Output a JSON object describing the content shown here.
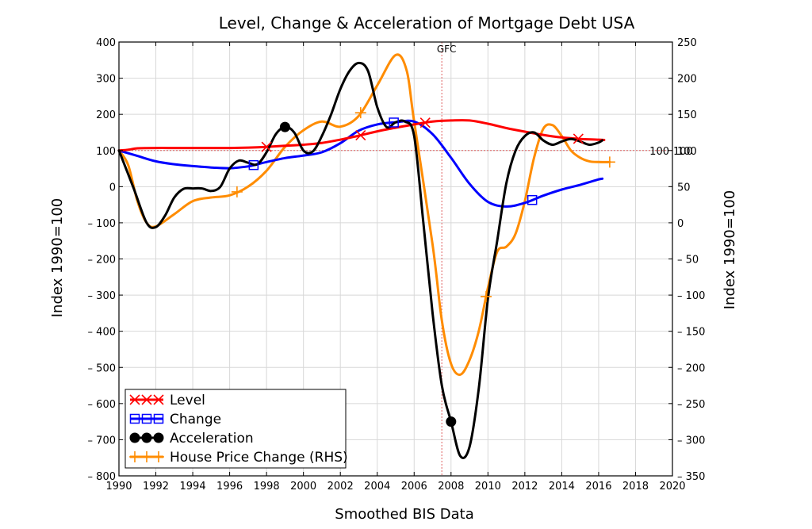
{
  "chart_data": {
    "type": "line",
    "title": "Level, Change & Acceleration of Mortgage Debt USA",
    "xlabel": "Smoothed BIS Data",
    "ylabel": "Index 1990=100",
    "ylabel_right": "Index 1990=100",
    "xlim": [
      1990,
      2020
    ],
    "ylim": [
      -800,
      400
    ],
    "ylim_right": [
      -350,
      250
    ],
    "x_ticks": [
      1990,
      1992,
      1994,
      1996,
      1998,
      2000,
      2002,
      2004,
      2006,
      2008,
      2010,
      2012,
      2014,
      2016,
      2018,
      2020
    ],
    "y_ticks": [
      400,
      300,
      200,
      100,
      0,
      -100,
      -200,
      -300,
      -400,
      -500,
      -600,
      -700,
      -800
    ],
    "y_ticks_right": [
      250,
      200,
      150,
      100,
      50,
      0,
      -50,
      -100,
      -150,
      -200,
      -250,
      -300,
      -350
    ],
    "y_tick_labels": [
      "400",
      "300",
      "200",
      "100",
      "0",
      "– 100",
      "– 200",
      "– 300",
      "– 400",
      "– 500",
      "– 600",
      "– 700",
      "– 800"
    ],
    "y_tick_labels_right": [
      "250",
      "200",
      "150",
      "100",
      "50",
      "0",
      "– 50",
      "– 100",
      "– 150",
      "– 200",
      "– 250",
      "– 300",
      "– 350"
    ],
    "grid": true,
    "legend_position": "bottom-left",
    "colors": {
      "level": "#ff0000",
      "change": "#0000ff",
      "acceleration": "#000000",
      "house_price": "#ff8c00",
      "grid": "#d8d8d8",
      "reference": "#e06060"
    },
    "reference_lines": {
      "vertical": {
        "x": 2007.5,
        "label": "GFC"
      },
      "horizontal": {
        "y": 100,
        "label_left": "100",
        "label_right": "100"
      }
    },
    "series": [
      {
        "name": "Level",
        "axis": "left",
        "marker": "x",
        "color": "#ff0000",
        "marker_x": [
          1998.0,
          2003.1,
          2006.6,
          2014.9
        ],
        "points": [
          [
            1990,
            100
          ],
          [
            1990.5,
            102
          ],
          [
            1991,
            106
          ],
          [
            1992,
            107
          ],
          [
            1993,
            107
          ],
          [
            1994,
            107
          ],
          [
            1995,
            107
          ],
          [
            1996,
            107
          ],
          [
            1997,
            108
          ],
          [
            1998,
            110
          ],
          [
            1999,
            113
          ],
          [
            2000,
            116
          ],
          [
            2001,
            121
          ],
          [
            2002,
            130
          ],
          [
            2003,
            141
          ],
          [
            2004,
            153
          ],
          [
            2005,
            163
          ],
          [
            2006,
            172
          ],
          [
            2007,
            180
          ],
          [
            2008,
            183
          ],
          [
            2009,
            183
          ],
          [
            2010,
            174
          ],
          [
            2011,
            162
          ],
          [
            2012,
            152
          ],
          [
            2013,
            143
          ],
          [
            2014,
            136
          ],
          [
            2015,
            132
          ],
          [
            2016,
            130
          ],
          [
            2016.3,
            129
          ]
        ]
      },
      {
        "name": "Change",
        "axis": "left",
        "marker": "square",
        "color": "#0000ff",
        "marker_x": [
          1997.3,
          2004.9,
          2012.4
        ],
        "points": [
          [
            1990,
            100
          ],
          [
            1991,
            85
          ],
          [
            1992,
            70
          ],
          [
            1993,
            62
          ],
          [
            1994,
            57
          ],
          [
            1995,
            53
          ],
          [
            1996,
            51
          ],
          [
            1997,
            56
          ],
          [
            1997.5,
            62
          ],
          [
            1998,
            68
          ],
          [
            1999,
            79
          ],
          [
            2000,
            86
          ],
          [
            2001,
            95
          ],
          [
            2002,
            120
          ],
          [
            2003,
            155
          ],
          [
            2004,
            172
          ],
          [
            2005,
            178
          ],
          [
            2006,
            180
          ],
          [
            2007,
            145
          ],
          [
            2008,
            80
          ],
          [
            2009,
            8
          ],
          [
            2010,
            -42
          ],
          [
            2011,
            -55
          ],
          [
            2012,
            -45
          ],
          [
            2013,
            -25
          ],
          [
            2014,
            -8
          ],
          [
            2015,
            5
          ],
          [
            2016,
            20
          ],
          [
            2016.2,
            22
          ]
        ]
      },
      {
        "name": "Acceleration",
        "axis": "left",
        "marker": "circle",
        "color": "#000000",
        "marker_x": [
          1999.0,
          2008.0
        ],
        "points": [
          [
            1990,
            100
          ],
          [
            1990.8,
            -5
          ],
          [
            1991.5,
            -100
          ],
          [
            1992,
            -112
          ],
          [
            1992.5,
            -80
          ],
          [
            1993,
            -30
          ],
          [
            1993.5,
            -6
          ],
          [
            1994,
            -5
          ],
          [
            1994.5,
            -5
          ],
          [
            1995,
            -12
          ],
          [
            1995.5,
            0
          ],
          [
            1996,
            50
          ],
          [
            1996.5,
            72
          ],
          [
            1997,
            66
          ],
          [
            1997.5,
            62
          ],
          [
            1998,
            95
          ],
          [
            1998.5,
            145
          ],
          [
            1999,
            165
          ],
          [
            1999.5,
            150
          ],
          [
            2000,
            100
          ],
          [
            2000.5,
            97
          ],
          [
            2001,
            140
          ],
          [
            2001.5,
            200
          ],
          [
            2002,
            270
          ],
          [
            2002.5,
            320
          ],
          [
            2003,
            342
          ],
          [
            2003.5,
            320
          ],
          [
            2004,
            220
          ],
          [
            2004.5,
            165
          ],
          [
            2005,
            178
          ],
          [
            2005.5,
            180
          ],
          [
            2006,
            140
          ],
          [
            2006.5,
            -100
          ],
          [
            2007,
            -350
          ],
          [
            2007.5,
            -550
          ],
          [
            2008,
            -650
          ],
          [
            2008.5,
            -745
          ],
          [
            2009,
            -720
          ],
          [
            2009.5,
            -560
          ],
          [
            2010,
            -310
          ],
          [
            2010.5,
            -150
          ],
          [
            2011,
            10
          ],
          [
            2011.5,
            100
          ],
          [
            2012,
            140
          ],
          [
            2012.5,
            150
          ],
          [
            2013,
            128
          ],
          [
            2013.5,
            116
          ],
          [
            2014,
            125
          ],
          [
            2014.5,
            132
          ],
          [
            2015,
            125
          ],
          [
            2015.5,
            116
          ],
          [
            2016,
            122
          ],
          [
            2016.2,
            128
          ]
        ]
      },
      {
        "name": "House Price Change (RHS)",
        "axis": "right",
        "marker": "plus",
        "color": "#ff8c00",
        "marker_x": [
          1996.4,
          2003.1,
          2009.9,
          2016.6
        ],
        "points": [
          [
            1990,
            100
          ],
          [
            1990.5,
            80
          ],
          [
            1991,
            30
          ],
          [
            1991.5,
            0
          ],
          [
            1992,
            -5
          ],
          [
            1993,
            12
          ],
          [
            1994,
            30
          ],
          [
            1995,
            35
          ],
          [
            1996,
            38
          ],
          [
            1997,
            50
          ],
          [
            1998,
            72
          ],
          [
            1999,
            105
          ],
          [
            2000,
            128
          ],
          [
            2001,
            140
          ],
          [
            2002,
            133
          ],
          [
            2003,
            148
          ],
          [
            2004,
            190
          ],
          [
            2005,
            232
          ],
          [
            2005.6,
            210
          ],
          [
            2006,
            140
          ],
          [
            2007,
            -30
          ],
          [
            2007.5,
            -135
          ],
          [
            2008,
            -195
          ],
          [
            2008.5,
            -210
          ],
          [
            2009,
            -190
          ],
          [
            2009.5,
            -150
          ],
          [
            2010,
            -90
          ],
          [
            2010.5,
            -40
          ],
          [
            2011,
            -33
          ],
          [
            2011.5,
            -15
          ],
          [
            2012,
            30
          ],
          [
            2012.5,
            90
          ],
          [
            2013,
            130
          ],
          [
            2013.5,
            135
          ],
          [
            2014,
            120
          ],
          [
            2014.5,
            100
          ],
          [
            2015,
            90
          ],
          [
            2015.5,
            85
          ],
          [
            2016,
            84
          ],
          [
            2016.6,
            84
          ]
        ]
      }
    ]
  }
}
